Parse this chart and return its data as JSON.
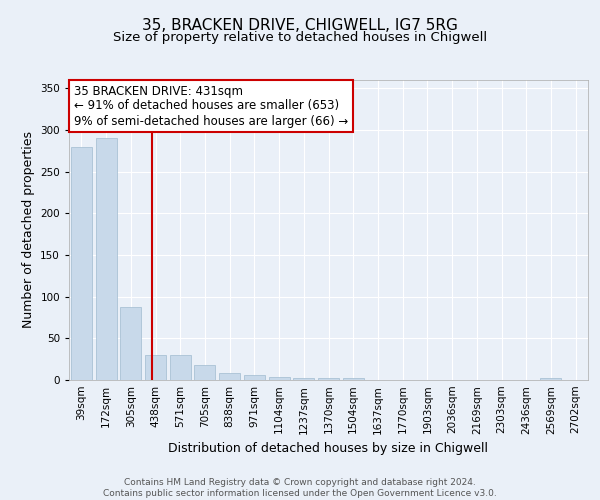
{
  "title_line1": "35, BRACKEN DRIVE, CHIGWELL, IG7 5RG",
  "title_line2": "Size of property relative to detached houses in Chigwell",
  "xlabel": "Distribution of detached houses by size in Chigwell",
  "ylabel": "Number of detached properties",
  "bin_labels": [
    "39sqm",
    "172sqm",
    "305sqm",
    "438sqm",
    "571sqm",
    "705sqm",
    "838sqm",
    "971sqm",
    "1104sqm",
    "1237sqm",
    "1370sqm",
    "1504sqm",
    "1637sqm",
    "1770sqm",
    "1903sqm",
    "2036sqm",
    "2169sqm",
    "2303sqm",
    "2436sqm",
    "2569sqm",
    "2702sqm"
  ],
  "bar_values": [
    280,
    290,
    88,
    30,
    30,
    18,
    9,
    6,
    4,
    2,
    3,
    3,
    0,
    0,
    0,
    0,
    0,
    0,
    0,
    2,
    0
  ],
  "bar_color": "#c8d9ea",
  "bar_edge_color": "#a0bbd0",
  "vline_color": "#cc0000",
  "annotation_text": "35 BRACKEN DRIVE: 431sqm\n← 91% of detached houses are smaller (653)\n9% of semi-detached houses are larger (66) →",
  "annotation_box_color": "#ffffff",
  "annotation_box_edge_color": "#cc0000",
  "ylim": [
    0,
    360
  ],
  "yticks": [
    0,
    50,
    100,
    150,
    200,
    250,
    300,
    350
  ],
  "bg_color": "#eaf0f8",
  "plot_bg_color": "#eaf0f8",
  "footer_text": "Contains HM Land Registry data © Crown copyright and database right 2024.\nContains public sector information licensed under the Open Government Licence v3.0.",
  "grid_color": "#ffffff",
  "title1_fontsize": 11,
  "title2_fontsize": 9.5,
  "xlabel_fontsize": 9,
  "ylabel_fontsize": 9,
  "tick_fontsize": 7.5,
  "annotation_fontsize": 8.5,
  "footer_fontsize": 6.5
}
